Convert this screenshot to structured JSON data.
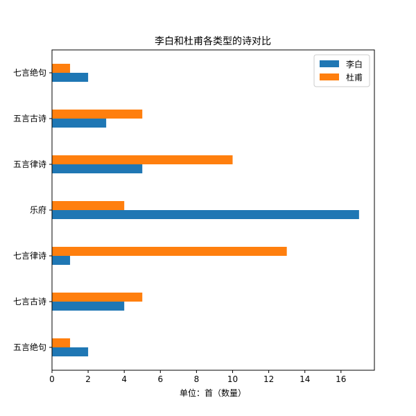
{
  "chart_data": {
    "type": "bar",
    "orientation": "horizontal",
    "title": "李白和杜甫各类型的诗对比",
    "xlabel": "单位：首（数量）",
    "ylabel": "",
    "xlim": [
      0,
      17.85
    ],
    "xticks": [
      0,
      2,
      4,
      6,
      8,
      10,
      12,
      14,
      16
    ],
    "categories": [
      "五言绝句",
      "七言古诗",
      "七言律诗",
      "乐府",
      "五言律诗",
      "五言古诗",
      "七言绝句"
    ],
    "series": [
      {
        "name": "李白",
        "color": "#1f77b4",
        "values": [
          2,
          4,
          1,
          17,
          5,
          3,
          2
        ]
      },
      {
        "name": "杜甫",
        "color": "#ff7f0e",
        "values": [
          1,
          5,
          13,
          4,
          10,
          5,
          1
        ]
      }
    ],
    "legend": "top-right",
    "grid": false
  }
}
